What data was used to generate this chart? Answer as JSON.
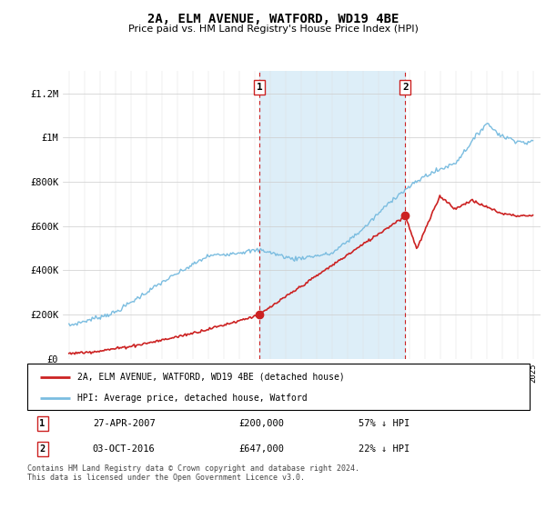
{
  "title": "2A, ELM AVENUE, WATFORD, WD19 4BE",
  "subtitle": "Price paid vs. HM Land Registry's House Price Index (HPI)",
  "ylim": [
    0,
    1300000
  ],
  "yticks": [
    0,
    200000,
    400000,
    600000,
    800000,
    1000000,
    1200000
  ],
  "ytick_labels": [
    "£0",
    "£200K",
    "£400K",
    "£600K",
    "£800K",
    "£1M",
    "£1.2M"
  ],
  "hpi_color": "#7bbde0",
  "price_color": "#cc2222",
  "sale1_year": 2007.32,
  "sale1_price": 200000,
  "sale2_year": 2016.75,
  "sale2_price": 647000,
  "sale1_label": "1",
  "sale2_label": "2",
  "vline_color": "#cc2222",
  "shade_color": "#ddeef8",
  "legend_line1": "2A, ELM AVENUE, WATFORD, WD19 4BE (detached house)",
  "legend_line2": "HPI: Average price, detached house, Watford",
  "table_row1": [
    "1",
    "27-APR-2007",
    "£200,000",
    "57% ↓ HPI"
  ],
  "table_row2": [
    "2",
    "03-OCT-2016",
    "£647,000",
    "22% ↓ HPI"
  ],
  "footnote": "Contains HM Land Registry data © Crown copyright and database right 2024.\nThis data is licensed under the Open Government Licence v3.0.",
  "background_color": "#ffffff"
}
